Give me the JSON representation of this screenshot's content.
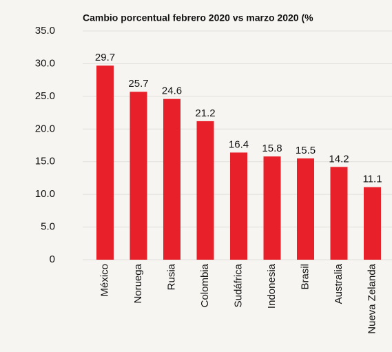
{
  "chart_data": {
    "type": "bar",
    "title": "Cambio porcentual febrero 2020 vs marzo 2020 (%",
    "categories": [
      "México",
      "Noruega",
      "Rusia",
      "Colombia",
      "Sudáfrica",
      "Indonesia",
      "Brasil",
      "Australia",
      "Nueva Zelanda"
    ],
    "values": [
      29.7,
      25.7,
      24.6,
      21.2,
      16.4,
      15.8,
      15.5,
      14.2,
      11.1
    ],
    "color": "#e8202a",
    "ylim": [
      0,
      35
    ],
    "yticks": [
      0,
      {
        "value": 5,
        "label": "5.0"
      },
      {
        "value": 10,
        "label": "10.0"
      },
      {
        "value": 15,
        "label": "15.0"
      },
      {
        "value": 20,
        "label": "20.0"
      },
      {
        "value": 25,
        "label": "25.0"
      },
      {
        "value": 30,
        "label": "30.0"
      },
      {
        "value": 35,
        "label": "35.0"
      }
    ],
    "grid": true
  }
}
